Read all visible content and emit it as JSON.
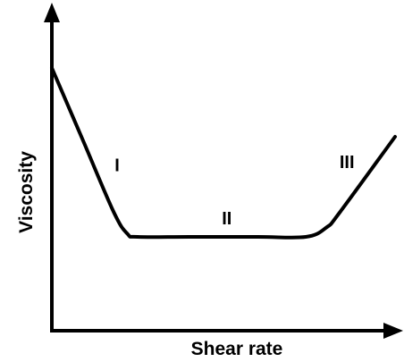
{
  "chart_data": {
    "type": "line",
    "title": "",
    "xlabel": "Shear rate",
    "ylabel": "Viscosity",
    "axes_ticks": false,
    "grid": false,
    "legend": "none",
    "xlim": [
      0,
      100
    ],
    "ylim": [
      0,
      100
    ],
    "series": [
      {
        "x": [
          0,
          9,
          18,
          22,
          25,
          40,
          60,
          74,
          80,
          84,
          100
        ],
        "y": [
          84,
          61,
          38,
          31,
          30,
          30,
          30,
          30,
          33,
          38,
          62
        ]
      }
    ],
    "annotations": [
      {
        "text": "I",
        "x": 19,
        "y": 51
      },
      {
        "text": "II",
        "x": 51,
        "y": 34
      },
      {
        "text": "III",
        "x": 86,
        "y": 52
      }
    ]
  }
}
